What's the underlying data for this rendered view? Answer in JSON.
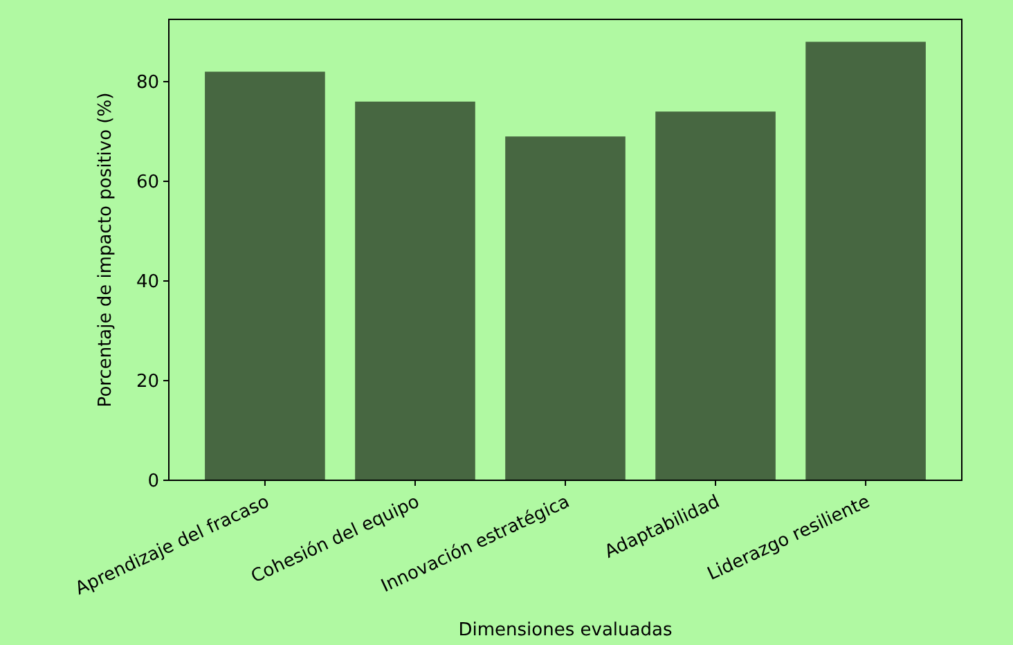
{
  "chart_data": {
    "type": "bar",
    "xlabel": "Dimensiones evaluadas",
    "ylabel": "Porcentaje de impacto positivo (%)",
    "categories": [
      "Aprendizaje del fracaso",
      "Cohesión del equipo",
      "Innovación estratégica",
      "Adaptabilidad",
      "Liderazgo resiliente"
    ],
    "values": [
      82,
      76,
      69,
      74,
      88
    ],
    "color": "#476741",
    "ylim": [
      0,
      92.5
    ],
    "yticks": [
      0,
      20,
      40,
      60,
      80
    ],
    "grid": false
  }
}
